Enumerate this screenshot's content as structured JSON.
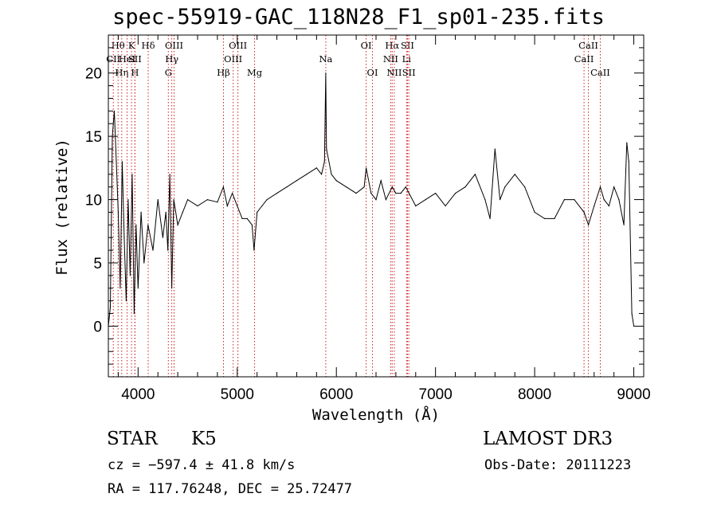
{
  "chart_data": {
    "type": "line",
    "title": "spec-55919-GAC_118N28_F1_sp01-235.fits",
    "xlabel": "Wavelength (Å)",
    "ylabel": "Flux (relative)",
    "xlim": [
      3700,
      9100
    ],
    "ylim": [
      -4,
      23
    ],
    "xticks": [
      4000,
      5000,
      6000,
      7000,
      8000,
      9000
    ],
    "yticks": [
      0,
      5,
      10,
      15,
      20
    ],
    "series": [
      {
        "name": "flux",
        "x": [
          3700,
          3720,
          3740,
          3760,
          3780,
          3800,
          3820,
          3840,
          3860,
          3880,
          3900,
          3920,
          3940,
          3960,
          3980,
          4000,
          4030,
          4060,
          4100,
          4150,
          4200,
          4250,
          4280,
          4300,
          4320,
          4340,
          4360,
          4400,
          4450,
          4500,
          4600,
          4700,
          4800,
          4860,
          4900,
          4950,
          5000,
          5050,
          5100,
          5150,
          5170,
          5200,
          5250,
          5300,
          5400,
          5500,
          5600,
          5700,
          5800,
          5850,
          5880,
          5893,
          5900,
          5950,
          6000,
          6100,
          6200,
          6280,
          6300,
          6350,
          6400,
          6450,
          6500,
          6563,
          6600,
          6650,
          6700,
          6800,
          6900,
          7000,
          7100,
          7200,
          7300,
          7400,
          7500,
          7550,
          7600,
          7650,
          7700,
          7800,
          7900,
          8000,
          8100,
          8200,
          8300,
          8400,
          8498,
          8542,
          8600,
          8662,
          8700,
          8750,
          8800,
          8850,
          8900,
          8930,
          8950,
          8980,
          9000
        ],
        "y": [
          0,
          1.5,
          15,
          17,
          13,
          9,
          3,
          13,
          7,
          2,
          10,
          4,
          12,
          1,
          8,
          3,
          9,
          5,
          8,
          6,
          10,
          7,
          9,
          6,
          12,
          3,
          10,
          8,
          9,
          10,
          9.5,
          10,
          9.8,
          11,
          9.5,
          10.5,
          9.5,
          8.5,
          8.5,
          8,
          6,
          9,
          9.5,
          10,
          10.5,
          11,
          11.5,
          12,
          12.5,
          12,
          13,
          20,
          14,
          12,
          11.5,
          11,
          10.5,
          11,
          12.5,
          10.5,
          10,
          11.5,
          10,
          11,
          10.5,
          10.5,
          11,
          9.5,
          10,
          10.5,
          9.5,
          10.5,
          11,
          12,
          10,
          8.5,
          14,
          10,
          11,
          12,
          11,
          9,
          8.5,
          8.5,
          10,
          10,
          9,
          8,
          9.5,
          11,
          10,
          9.5,
          11,
          10,
          8,
          14.5,
          13,
          1,
          0
        ]
      }
    ],
    "line_markers": [
      {
        "label": "Hθ",
        "wavelength": 3798,
        "row": 1
      },
      {
        "label": "CII",
        "wavelength": 3750,
        "row": 2
      },
      {
        "label": "Hη",
        "wavelength": 3835,
        "row": 3
      },
      {
        "label": "HeI",
        "wavelength": 3889,
        "row": 2
      },
      {
        "label": "K",
        "wavelength": 3934,
        "row": 1
      },
      {
        "label": "SII",
        "wavelength": 3968,
        "row": 2
      },
      {
        "label": "H",
        "wavelength": 3968,
        "row": 3
      },
      {
        "label": "Hδ",
        "wavelength": 4102,
        "row": 1
      },
      {
        "label": "OIII",
        "wavelength": 4363,
        "row": 1
      },
      {
        "label": "Hγ",
        "wavelength": 4340,
        "row": 2
      },
      {
        "label": "G",
        "wavelength": 4305,
        "row": 3
      },
      {
        "label": "Hβ",
        "wavelength": 4861,
        "row": 3
      },
      {
        "label": "OIII",
        "wavelength": 5007,
        "row": 1
      },
      {
        "label": "OIII",
        "wavelength": 4959,
        "row": 2
      },
      {
        "label": "Mg",
        "wavelength": 5175,
        "row": 3
      },
      {
        "label": "Na",
        "wavelength": 5893,
        "row": 2
      },
      {
        "label": "OI",
        "wavelength": 6300,
        "row": 1
      },
      {
        "label": "OI",
        "wavelength": 6364,
        "row": 3
      },
      {
        "label": "Hα",
        "wavelength": 6563,
        "row": 1
      },
      {
        "label": "NII",
        "wavelength": 6548,
        "row": 2
      },
      {
        "label": "NII",
        "wavelength": 6584,
        "row": 3
      },
      {
        "label": "SII",
        "wavelength": 6717,
        "row": 1
      },
      {
        "label": "Li",
        "wavelength": 6708,
        "row": 2
      },
      {
        "label": "SII",
        "wavelength": 6731,
        "row": 3
      },
      {
        "label": "CaII",
        "wavelength": 8542,
        "row": 1
      },
      {
        "label": "CaII",
        "wavelength": 8498,
        "row": 2
      },
      {
        "label": "CaII",
        "wavelength": 8662,
        "row": 3
      }
    ],
    "colors": {
      "axes": "#000000",
      "line": "#000000",
      "marker": "#cc2222"
    }
  },
  "info": {
    "object_class": "STAR",
    "subclass": "K5",
    "survey": "LAMOST DR3",
    "redshift": "cz = −597.4 ± 41.8 km/s",
    "obs_date": "Obs-Date: 20111223",
    "coords": "RA = 117.76248, DEC =  25.72477"
  }
}
